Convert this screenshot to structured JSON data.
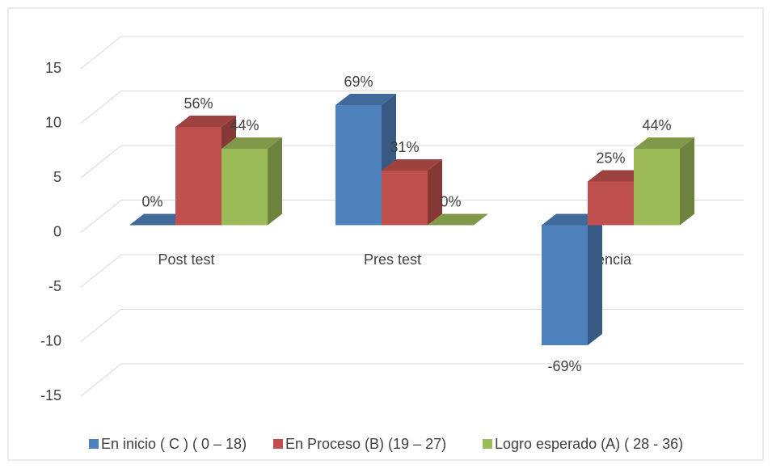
{
  "chart_data": {
    "type": "bar3d",
    "categories": [
      "Post test",
      "Pres test",
      "Diferencia"
    ],
    "series": [
      {
        "name": "En inicio ( C ) ( 0 – 18)",
        "color": "#4f81bd",
        "values": [
          0,
          11,
          -11
        ],
        "value_labels": [
          "0%",
          "69%",
          "-69%"
        ]
      },
      {
        "name": "En Proceso (B) (19 – 27)",
        "color": "#c0504d",
        "values": [
          9,
          5,
          4
        ],
        "value_labels": [
          "56%",
          "31%",
          "25%"
        ]
      },
      {
        "name": "Logro esperado (A) ( 28 - 36)",
        "color": "#9bbb59",
        "values": [
          7,
          0,
          7
        ],
        "value_labels": [
          "44%",
          "0%",
          "44%"
        ]
      }
    ],
    "ylim": [
      -15,
      15
    ],
    "yticks": [
      -15,
      -10,
      -5,
      0,
      5,
      10,
      15
    ],
    "grid": true,
    "legend": "bottom"
  }
}
